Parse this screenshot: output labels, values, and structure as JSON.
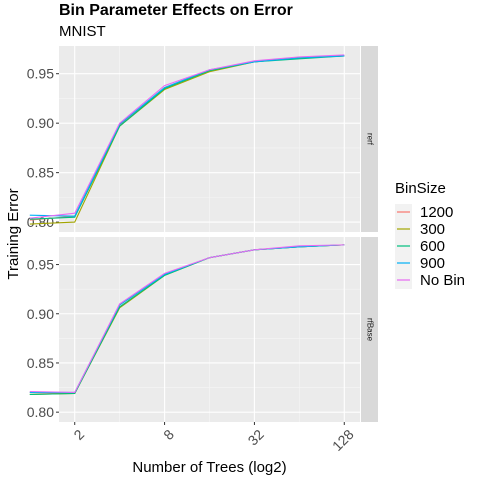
{
  "chart_data": {
    "type": "line",
    "title": "Bin Parameter Effects on Error",
    "subtitle": "MNIST",
    "xlabel": "Number of Trees (log2)",
    "ylabel": "Training Error",
    "x_scale": "log2",
    "x": [
      1,
      2,
      4,
      8,
      16,
      32,
      64,
      128
    ],
    "x_ticks": [
      2,
      8,
      32,
      128
    ],
    "x_tick_labels": [
      "2",
      "8",
      "32",
      "128"
    ],
    "ylim": [
      0.79,
      0.978
    ],
    "y_ticks": [
      0.8,
      0.85,
      0.9,
      0.95
    ],
    "y_tick_labels": [
      "0.80",
      "0.85",
      "0.90",
      "0.95"
    ],
    "legend": {
      "title": "BinSize",
      "position": "right",
      "entries": [
        "1200",
        "300",
        "600",
        "900",
        "No Bin"
      ]
    },
    "colors": {
      "1200": "#F8766D",
      "300": "#A3A500",
      "600": "#00BF7D",
      "900": "#00B0F6",
      "No Bin": "#E76BF3"
    },
    "panels": [
      {
        "strip": "rerf",
        "series": [
          {
            "name": "1200",
            "values": [
              0.802,
              0.806,
              0.898,
              0.936,
              0.953,
              0.962,
              0.966,
              0.968
            ]
          },
          {
            "name": "300",
            "values": [
              0.798,
              0.8,
              0.897,
              0.934,
              0.952,
              0.962,
              0.966,
              0.968
            ]
          },
          {
            "name": "600",
            "values": [
              0.803,
              0.805,
              0.897,
              0.935,
              0.953,
              0.962,
              0.965,
              0.968
            ]
          },
          {
            "name": "900",
            "values": [
              0.807,
              0.806,
              0.899,
              0.936,
              0.954,
              0.962,
              0.966,
              0.968
            ]
          },
          {
            "name": "No Bin",
            "values": [
              0.804,
              0.809,
              0.9,
              0.938,
              0.954,
              0.963,
              0.967,
              0.969
            ]
          }
        ]
      },
      {
        "strip": "rfBase",
        "series": [
          {
            "name": "1200",
            "values": [
              0.82,
              0.819,
              0.909,
              0.94,
              0.957,
              0.965,
              0.968,
              0.97
            ]
          },
          {
            "name": "300",
            "values": [
              0.818,
              0.819,
              0.906,
              0.939,
              0.957,
              0.965,
              0.968,
              0.97
            ]
          },
          {
            "name": "600",
            "values": [
              0.818,
              0.819,
              0.907,
              0.939,
              0.957,
              0.965,
              0.968,
              0.97
            ]
          },
          {
            "name": "900",
            "values": [
              0.82,
              0.82,
              0.909,
              0.94,
              0.957,
              0.965,
              0.968,
              0.97
            ]
          },
          {
            "name": "No Bin",
            "values": [
              0.821,
              0.82,
              0.91,
              0.941,
              0.957,
              0.965,
              0.969,
              0.97
            ]
          }
        ]
      }
    ]
  }
}
